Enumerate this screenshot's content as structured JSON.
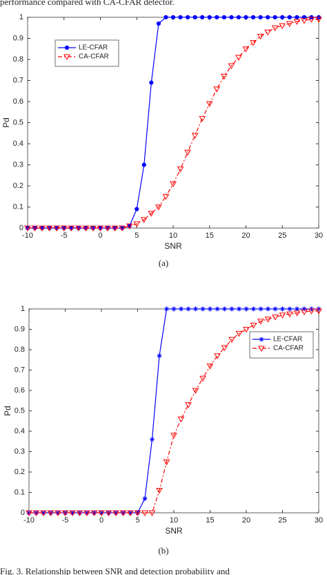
{
  "page_text": {
    "intro": "performance compared with CA-CFAR detector.",
    "caption": "Fig. 3.   Relationship between SNR and detection probability and"
  },
  "chart_data": [
    {
      "type": "line",
      "caption": "(a)",
      "x_label": "SNR",
      "y_label": "Pd",
      "x": [
        -10,
        -9,
        -8,
        -7,
        -6,
        -5,
        -4,
        -3,
        -2,
        -1,
        0,
        1,
        2,
        3,
        4,
        5,
        6,
        7,
        8,
        9,
        10,
        11,
        12,
        13,
        14,
        15,
        16,
        17,
        18,
        19,
        20,
        21,
        22,
        23,
        24,
        25,
        26,
        27,
        28,
        29,
        30
      ],
      "series": [
        {
          "name": "LE-CFAR",
          "color": "#0000ff",
          "marker": "circle",
          "dash": "solid",
          "values": [
            0,
            0,
            0,
            0,
            0,
            0,
            0,
            0,
            0,
            0,
            0,
            0,
            0,
            0,
            0.01,
            0.09,
            0.3,
            0.69,
            0.97,
            1,
            1,
            1,
            1,
            1,
            1,
            1,
            1,
            1,
            1,
            1,
            1,
            1,
            1,
            1,
            1,
            1,
            1,
            1,
            1,
            1,
            1
          ]
        },
        {
          "name": "CA-CFAR",
          "color": "#ff0000",
          "marker": "triangle-down",
          "dash": "dash-dot",
          "values": [
            0,
            0,
            0,
            0,
            0,
            0,
            0,
            0,
            0,
            0,
            0,
            0,
            0,
            0,
            0.01,
            0.02,
            0.04,
            0.07,
            0.1,
            0.15,
            0.21,
            0.28,
            0.36,
            0.44,
            0.52,
            0.59,
            0.66,
            0.72,
            0.77,
            0.81,
            0.85,
            0.88,
            0.91,
            0.93,
            0.95,
            0.96,
            0.97,
            0.98,
            0.985,
            0.99,
            0.99
          ]
        }
      ],
      "xlim": [
        -10,
        30
      ],
      "xticks": [
        -10,
        -5,
        0,
        5,
        10,
        15,
        20,
        25,
        30
      ],
      "ylim": [
        0,
        1
      ],
      "yticks": [
        0,
        0.1,
        0.2,
        0.3,
        0.4,
        0.5,
        0.6,
        0.7,
        0.8,
        0.9,
        1
      ],
      "legend": "northwest",
      "grid": false
    },
    {
      "type": "line",
      "caption": "(b)",
      "x_label": "SNR",
      "y_label": "Pd",
      "x": [
        -10,
        -9,
        -8,
        -7,
        -6,
        -5,
        -4,
        -3,
        -2,
        -1,
        0,
        1,
        2,
        3,
        4,
        5,
        6,
        7,
        8,
        9,
        10,
        11,
        12,
        13,
        14,
        15,
        16,
        17,
        18,
        19,
        20,
        21,
        22,
        23,
        24,
        25,
        26,
        27,
        28,
        29,
        30
      ],
      "series": [
        {
          "name": "LE-CFAR",
          "color": "#0000ff",
          "marker": "star",
          "dash": "solid",
          "values": [
            0,
            0,
            0,
            0,
            0,
            0,
            0,
            0,
            0,
            0,
            0,
            0,
            0,
            0,
            0,
            0,
            0.07,
            0.36,
            0.77,
            1,
            1,
            1,
            1,
            1,
            1,
            1,
            1,
            1,
            1,
            1,
            1,
            1,
            1,
            1,
            1,
            1,
            1,
            1,
            1,
            1,
            1
          ]
        },
        {
          "name": "CA-CFAR",
          "color": "#ff0000",
          "marker": "triangle-down",
          "dash": "dash-dot",
          "values": [
            0,
            0,
            0,
            0,
            0,
            0,
            0,
            0,
            0,
            0,
            0,
            0,
            0,
            0,
            0,
            0,
            0,
            0,
            0.11,
            0.25,
            0.38,
            0.46,
            0.53,
            0.6,
            0.66,
            0.72,
            0.77,
            0.81,
            0.85,
            0.88,
            0.9,
            0.92,
            0.94,
            0.95,
            0.96,
            0.97,
            0.975,
            0.98,
            0.985,
            0.99,
            0.99
          ]
        }
      ],
      "xlim": [
        -10,
        30
      ],
      "xticks": [
        -10,
        -5,
        0,
        5,
        10,
        15,
        20,
        25,
        30
      ],
      "ylim": [
        0,
        1
      ],
      "yticks": [
        0,
        0.1,
        0.2,
        0.3,
        0.4,
        0.5,
        0.6,
        0.7,
        0.8,
        0.9,
        1
      ],
      "legend": "northeast",
      "grid": false
    }
  ]
}
